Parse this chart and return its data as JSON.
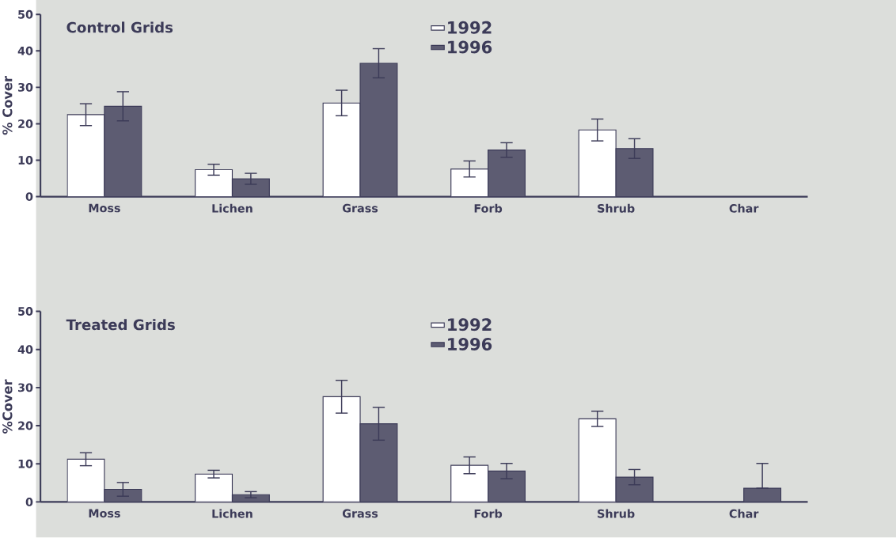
{
  "chart_data": [
    {
      "type": "bar",
      "title": "Control Grids",
      "ylabel": "% Cover",
      "categories": [
        "Moss",
        "Lichen",
        "Grass",
        "Forb",
        "Shrub",
        "Char"
      ],
      "ylim": [
        0,
        50
      ],
      "yticks": [
        0,
        10,
        20,
        30,
        40,
        50
      ],
      "legend": "top",
      "series": [
        {
          "name": "1992",
          "color": "#ffffff",
          "values": [
            22.5,
            7.4,
            25.7,
            7.6,
            18.3,
            null
          ],
          "errors": [
            3,
            1.5,
            3.5,
            2.2,
            3,
            null
          ]
        },
        {
          "name": "1996",
          "color": "#5d5c72",
          "values": [
            24.8,
            4.9,
            36.6,
            12.8,
            13.2,
            null
          ],
          "errors": [
            4,
            1.5,
            4,
            2,
            2.7,
            null
          ]
        }
      ]
    },
    {
      "type": "bar",
      "title": "Treated Grids",
      "ylabel": "%Cover",
      "categories": [
        "Moss",
        "Lichen",
        "Grass",
        "Forb",
        "Shrub",
        "Char"
      ],
      "ylim": [
        0,
        50
      ],
      "yticks": [
        0,
        10,
        20,
        30,
        40,
        50
      ],
      "legend": "top",
      "series": [
        {
          "name": "1992",
          "color": "#ffffff",
          "values": [
            11.2,
            7.3,
            27.6,
            9.6,
            21.8,
            null
          ],
          "errors": [
            1.7,
            1,
            4.3,
            2.2,
            2,
            null
          ]
        },
        {
          "name": "1996",
          "color": "#5d5c72",
          "values": [
            3.3,
            1.9,
            20.5,
            8.1,
            6.5,
            3.6
          ],
          "errors": [
            1.8,
            0.8,
            4.3,
            2,
            2,
            [
              3.6,
              10.1
            ]
          ]
        }
      ]
    }
  ]
}
